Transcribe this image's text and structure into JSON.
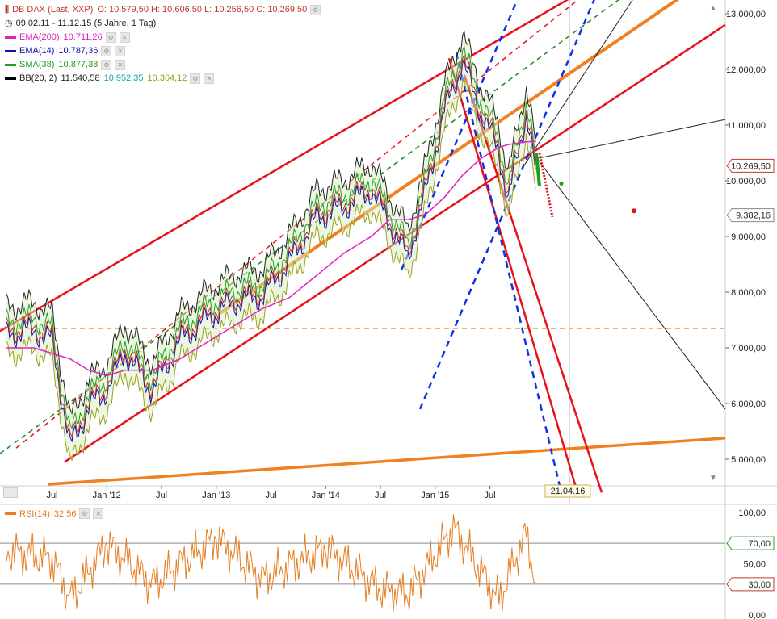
{
  "header": {
    "title": "DB DAX (Last, XXP)",
    "ohlc": "O: 10.579,50  H: 10.606,50  L: 10.256,50  C: 10.269,50",
    "range": "09.02.11 - 11.12.15 (5 Jahre, 1 Tag)"
  },
  "indicators": [
    {
      "label": "EMA(200)",
      "value": "10.711,26",
      "color": "#e020c0"
    },
    {
      "label": "EMA(14)",
      "value": "10.787,36",
      "color": "#1010b0"
    },
    {
      "label": "SMA(38)",
      "value": "10.877,38",
      "color": "#20a020"
    },
    {
      "label": "BB(20, 2)",
      "value": "11.540,58",
      "value2": "10.952,35",
      "value3": "10.364,12",
      "color": "#000000",
      "color2": "#1aa3a3",
      "color3": "#9aa01a"
    }
  ],
  "rsi": {
    "label": "RSI(14)",
    "value": "32,56",
    "color": "#e67e22"
  },
  "price_axis": {
    "ticks": [
      "13.000,00",
      "12.000,00",
      "11.000,00",
      "10.000,00",
      "9.000,00",
      "8.000,00",
      "7.000,00",
      "6.000,00",
      "5.000,00"
    ],
    "tag_close": "10.269,50",
    "tag_crosshair": "9.382,16"
  },
  "rsi_axis": {
    "ticks": [
      "100,00",
      "50,00",
      "0,00"
    ],
    "tag_upper": "70,00",
    "tag_lower": "30,00"
  },
  "time_axis": {
    "labels": [
      "Jul",
      "Jan '12",
      "Jul",
      "Jan '13",
      "Jul",
      "Jan '14",
      "Jul",
      "Jan '15",
      "Jul"
    ],
    "cursor_date": "21.04.16"
  },
  "chart_data": {
    "type": "line",
    "title": "DB DAX (Last, XXP)",
    "xlabel": "",
    "ylabel": "",
    "ylim": [
      4400,
      13350
    ],
    "rsi_ylim": [
      0,
      100
    ],
    "grid": false,
    "series": [
      {
        "name": "DAX",
        "x": [
          "2011-02",
          "2011-05",
          "2011-07",
          "2011-09",
          "2011-11",
          "2012-01",
          "2012-03",
          "2012-06",
          "2012-09",
          "2012-12",
          "2013-03",
          "2013-06",
          "2013-09",
          "2013-12",
          "2014-03",
          "2014-06",
          "2014-08",
          "2014-10",
          "2014-12",
          "2015-02",
          "2015-04",
          "2015-06",
          "2015-08",
          "2015-09",
          "2015-11",
          "2015-12"
        ],
        "values": [
          7300,
          7400,
          7200,
          5300,
          6000,
          6300,
          7000,
          6300,
          7200,
          7600,
          7900,
          8000,
          8600,
          9400,
          9600,
          9900,
          9300,
          8700,
          9900,
          11300,
          12200,
          11300,
          10600,
          9700,
          11300,
          10270
        ]
      },
      {
        "name": "EMA(200)",
        "values": [
          7000,
          7000,
          6900,
          6800,
          6600,
          6500,
          6600,
          6600,
          6800,
          7100,
          7400,
          7700,
          7900,
          8300,
          8700,
          9000,
          9300,
          9300,
          9400,
          9700,
          10100,
          10400,
          10600,
          10650,
          10700,
          10711
        ]
      },
      {
        "name": "RSI(14)",
        "x": [
          "2011-02",
          "2011-07",
          "2011-09",
          "2012-01",
          "2012-06",
          "2013-01",
          "2013-06",
          "2014-01",
          "2014-07",
          "2014-10",
          "2015-03",
          "2015-08",
          "2015-11",
          "2015-12"
        ],
        "values": [
          62,
          55,
          15,
          70,
          30,
          75,
          35,
          65,
          25,
          20,
          85,
          15,
          80,
          32.56
        ]
      }
    ],
    "annotations": [
      "trend channels",
      "crosshair at 9.382,16 / 21.04.16"
    ]
  }
}
